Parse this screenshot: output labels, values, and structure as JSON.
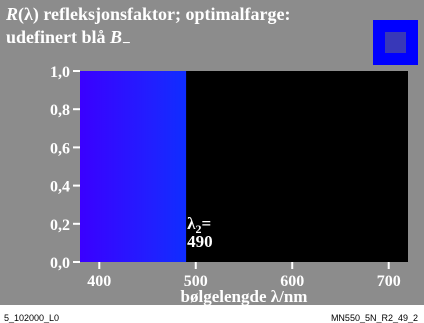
{
  "title": {
    "line1_prefix": "R",
    "line1_rest": "(λ) refleksjonsfaktor; optimalfarge:",
    "line2_prefix": "udefinert blå ",
    "line2_b": "B",
    "line2_sub": "−"
  },
  "swatch": {
    "outer_color": "#0000ff",
    "inner_color": "#3838b8"
  },
  "footer": {
    "left": "5_102000_L0",
    "right": "MN550_5N_R2_49_2"
  },
  "colors": {
    "frame": "#8c8c8c",
    "plot_background": "#000000",
    "text": "#ffffff"
  },
  "chart_data": {
    "type": "area",
    "xlabel": "bølgelengde λ/nm",
    "ylabel": "",
    "xlim": [
      380,
      720
    ],
    "ylim": [
      0,
      1
    ],
    "x_ticks": [
      400,
      500,
      600,
      700
    ],
    "y_ticks": [
      0.0,
      0.2,
      0.4,
      0.6,
      0.8,
      1.0
    ],
    "y_tick_labels": [
      "0,0",
      "0,2",
      "0,4",
      "0,6",
      "0,8",
      "1,0"
    ],
    "grid": false,
    "series": [
      {
        "x": [
          380,
          490,
          490,
          720
        ],
        "y": [
          1.0,
          1.0,
          0.0,
          0.0
        ]
      }
    ],
    "annotation": {
      "symbol": "λ",
      "subscript": "2",
      "suffix": "=",
      "value": "490",
      "x": 490,
      "y": 0.1
    },
    "spectrum_stops": [
      {
        "nm": 380,
        "color": "#3a00ff"
      },
      {
        "nm": 405,
        "color": "#2020ff"
      },
      {
        "nm": 425,
        "color": "#0038ff"
      },
      {
        "nm": 445,
        "color": "#0064ff"
      },
      {
        "nm": 460,
        "color": "#0090ff"
      },
      {
        "nm": 472,
        "color": "#00b8ff"
      },
      {
        "nm": 482,
        "color": "#00e0ff"
      },
      {
        "nm": 490,
        "color": "#00ffff"
      }
    ]
  }
}
